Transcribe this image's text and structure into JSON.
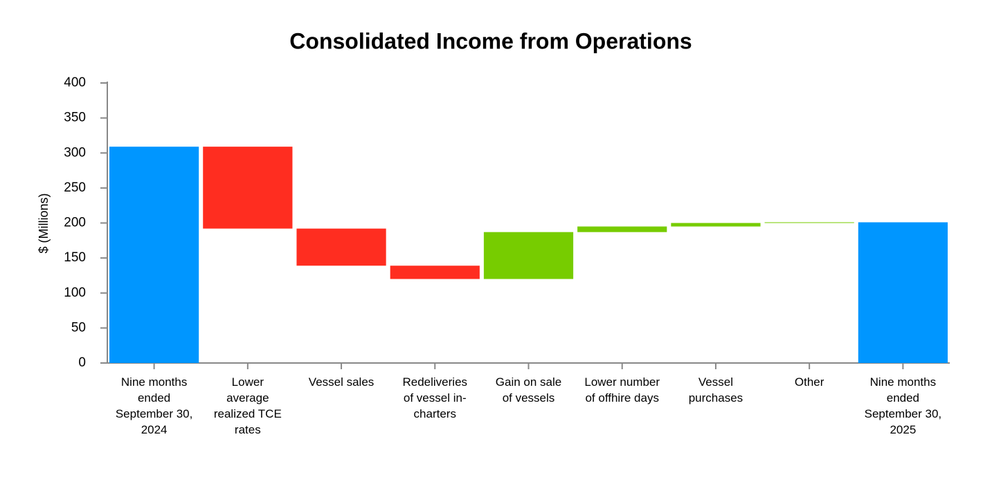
{
  "chart_data": {
    "type": "waterfall",
    "title": "Consolidated Income from Operations",
    "y_label": "$ (Millions)",
    "categories": [
      "Nine months ended September 30, 2024",
      "Lower average realized TCE rates",
      "Vessel sales",
      "Redeliveries of vessel in-charters",
      "Gain on sale of vessels",
      "Lower number of offhire days",
      "Vessel purchases",
      "Other",
      "Nine months ended September 30, 2025"
    ],
    "values": [
      309,
      -117,
      -53,
      -19,
      67,
      8,
      5,
      1,
      201
    ],
    "colors": {
      "total": "#0096ff",
      "decrease": "#ff2d20",
      "increase": "#77cc00"
    },
    "ylim": [
      0,
      400
    ],
    "yticks": [
      0,
      50,
      100,
      150,
      200,
      250,
      300,
      350,
      400
    ]
  }
}
